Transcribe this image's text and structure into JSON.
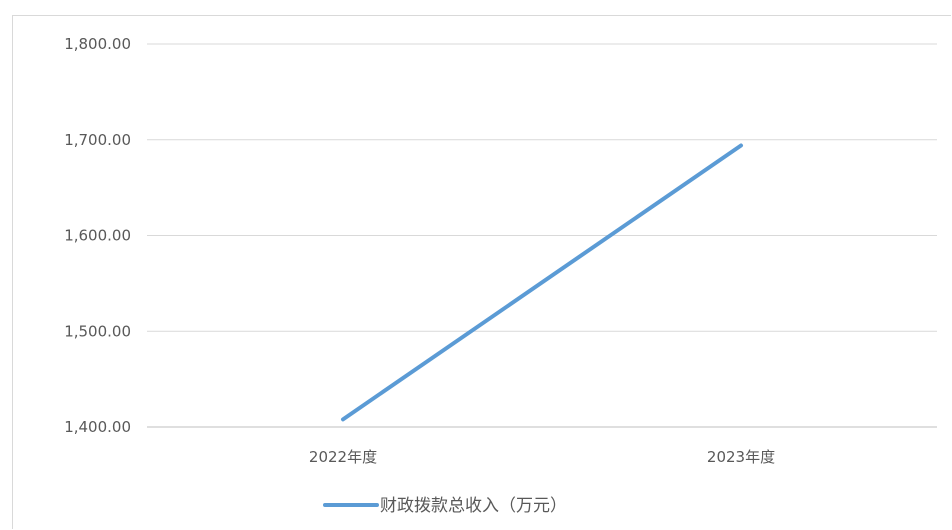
{
  "chart_data": {
    "type": "line",
    "title": "",
    "xlabel": "",
    "ylabel": "",
    "categories": [
      "2022年度",
      "2023年度"
    ],
    "ylim": [
      1400,
      1800
    ],
    "yticks": [
      1400,
      1500,
      1600,
      1700,
      1800
    ],
    "ytick_labels": [
      "1,400.00",
      "1,500.00",
      "1,600.00",
      "1,700.00",
      "1,800.00"
    ],
    "series": [
      {
        "name": "财政拨款总收入（万元）",
        "values": [
          1408,
          1694
        ],
        "color": "#5b9bd5"
      }
    ],
    "grid": true,
    "legend": "bottom"
  }
}
